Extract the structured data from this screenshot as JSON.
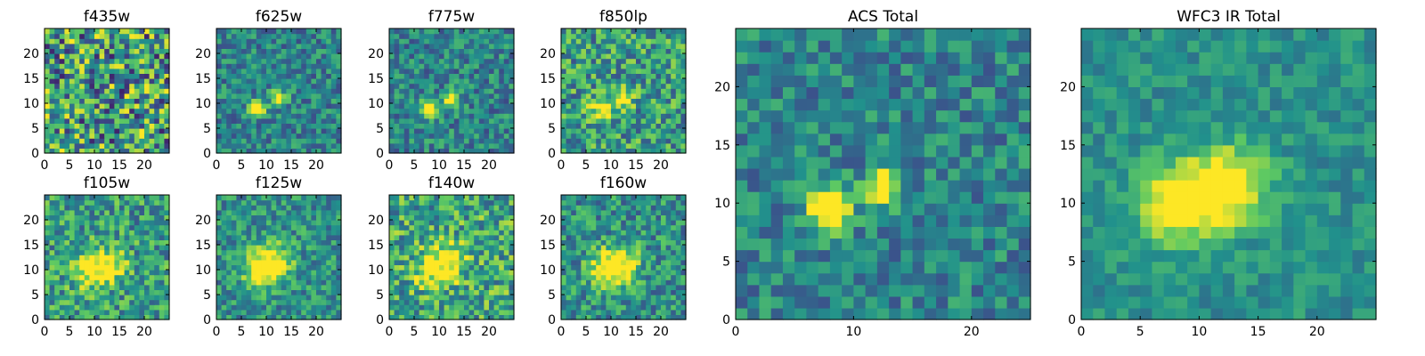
{
  "chart_data": [
    {
      "type": "heatmap",
      "title": "f435w",
      "grid_size": 25,
      "source_points": [],
      "noise": 0.9,
      "base": 0.55,
      "xticks": [
        "0",
        "5",
        "10",
        "15",
        "20"
      ],
      "yticks": [
        "0",
        "5",
        "10",
        "15",
        "20"
      ],
      "xlim": [
        0,
        25
      ],
      "ylim": [
        0,
        25
      ]
    },
    {
      "type": "heatmap",
      "title": "f625w",
      "grid_size": 25,
      "source_points": [
        {
          "x": 8,
          "y": 9,
          "amp": 0.9,
          "sigma": 1.1
        },
        {
          "x": 12.5,
          "y": 11,
          "amp": 0.85,
          "sigma": 1.0
        }
      ],
      "noise": 0.45,
      "base": 0.45,
      "xticks": [
        "0",
        "5",
        "10",
        "15",
        "20"
      ],
      "yticks": [
        "0",
        "5",
        "10",
        "15",
        "20"
      ],
      "xlim": [
        0,
        25
      ],
      "ylim": [
        0,
        25
      ]
    },
    {
      "type": "heatmap",
      "title": "f775w",
      "grid_size": 25,
      "source_points": [
        {
          "x": 8,
          "y": 9,
          "amp": 0.8,
          "sigma": 1.1
        },
        {
          "x": 12.5,
          "y": 11,
          "amp": 0.85,
          "sigma": 1.0
        }
      ],
      "noise": 0.45,
      "base": 0.45,
      "xticks": [
        "0",
        "5",
        "10",
        "15",
        "20"
      ],
      "yticks": [
        "0",
        "5",
        "10",
        "15",
        "20"
      ],
      "xlim": [
        0,
        25
      ],
      "ylim": [
        0,
        25
      ]
    },
    {
      "type": "heatmap",
      "title": "f850lp",
      "grid_size": 25,
      "source_points": [
        {
          "x": 8,
          "y": 9,
          "amp": 0.6,
          "sigma": 1.4
        },
        {
          "x": 12.5,
          "y": 11,
          "amp": 0.6,
          "sigma": 1.3
        }
      ],
      "noise": 0.6,
      "base": 0.55,
      "xticks": [
        "0",
        "5",
        "10",
        "15",
        "20"
      ],
      "yticks": [
        "0",
        "5",
        "10",
        "15",
        "20"
      ],
      "xlim": [
        0,
        25
      ],
      "ylim": [
        0,
        25
      ]
    },
    {
      "type": "heatmap",
      "title": "f105w",
      "grid_size": 25,
      "source_points": [
        {
          "x": 9,
          "y": 10,
          "amp": 0.5,
          "sigma": 2.5
        },
        {
          "x": 13,
          "y": 11,
          "amp": 0.4,
          "sigma": 2.5
        }
      ],
      "noise": 0.55,
      "base": 0.55,
      "xticks": [
        "0",
        "5",
        "10",
        "15",
        "20"
      ],
      "yticks": [
        "0",
        "5",
        "10",
        "15",
        "20"
      ],
      "xlim": [
        0,
        25
      ],
      "ylim": [
        0,
        25
      ]
    },
    {
      "type": "heatmap",
      "title": "f125w",
      "grid_size": 25,
      "source_points": [
        {
          "x": 9,
          "y": 10,
          "amp": 0.55,
          "sigma": 2.6
        },
        {
          "x": 12,
          "y": 12,
          "amp": 0.4,
          "sigma": 2.5
        }
      ],
      "noise": 0.45,
      "base": 0.5,
      "xticks": [
        "0",
        "5",
        "10",
        "15",
        "20"
      ],
      "yticks": [
        "0",
        "5",
        "10",
        "15",
        "20"
      ],
      "xlim": [
        0,
        25
      ],
      "ylim": [
        0,
        25
      ]
    },
    {
      "type": "heatmap",
      "title": "f140w",
      "grid_size": 25,
      "source_points": [
        {
          "x": 9,
          "y": 10,
          "amp": 0.4,
          "sigma": 2.6
        },
        {
          "x": 12,
          "y": 12,
          "amp": 0.35,
          "sigma": 2.5
        }
      ],
      "noise": 0.6,
      "base": 0.6,
      "xticks": [
        "0",
        "5",
        "10",
        "15",
        "20"
      ],
      "yticks": [
        "0",
        "5",
        "10",
        "15",
        "20"
      ],
      "xlim": [
        0,
        25
      ],
      "ylim": [
        0,
        25
      ]
    },
    {
      "type": "heatmap",
      "title": "f160w",
      "grid_size": 25,
      "source_points": [
        {
          "x": 9,
          "y": 10,
          "amp": 0.55,
          "sigma": 2.6
        },
        {
          "x": 12.5,
          "y": 11.5,
          "amp": 0.45,
          "sigma": 2.5
        }
      ],
      "noise": 0.5,
      "base": 0.5,
      "xticks": [
        "0",
        "5",
        "10",
        "15",
        "20"
      ],
      "yticks": [
        "0",
        "5",
        "10",
        "15",
        "20"
      ],
      "xlim": [
        0,
        25
      ],
      "ylim": [
        0,
        25
      ]
    },
    {
      "type": "heatmap",
      "title": "ACS Total",
      "grid_size": 25,
      "source_points": [
        {
          "x": 8,
          "y": 9.5,
          "amp": 1.0,
          "sigma": 1.2
        },
        {
          "x": 12.5,
          "y": 11.5,
          "amp": 0.9,
          "sigma": 1.0
        }
      ],
      "noise": 0.4,
      "base": 0.45,
      "xticks": [
        "0",
        "10",
        "20"
      ],
      "yticks": [
        "0",
        "5",
        "10",
        "15",
        "20"
      ],
      "xlim": [
        0,
        25
      ],
      "ylim": [
        0,
        25
      ]
    },
    {
      "type": "heatmap",
      "title": "WFC3 IR Total",
      "grid_size": 25,
      "source_points": [
        {
          "x": 8,
          "y": 10,
          "amp": 0.6,
          "sigma": 2.3
        },
        {
          "x": 12.5,
          "y": 11.5,
          "amp": 0.65,
          "sigma": 2.3
        }
      ],
      "noise": 0.25,
      "base": 0.5,
      "xticks": [
        "0",
        "5",
        "10",
        "15",
        "20"
      ],
      "yticks": [
        "0",
        "5",
        "10",
        "15",
        "20"
      ],
      "xlim": [
        0,
        25
      ],
      "ylim": [
        0,
        25
      ]
    }
  ],
  "colormap": [
    "#440154",
    "#3b528b",
    "#21918c",
    "#5ec962",
    "#fde725"
  ]
}
